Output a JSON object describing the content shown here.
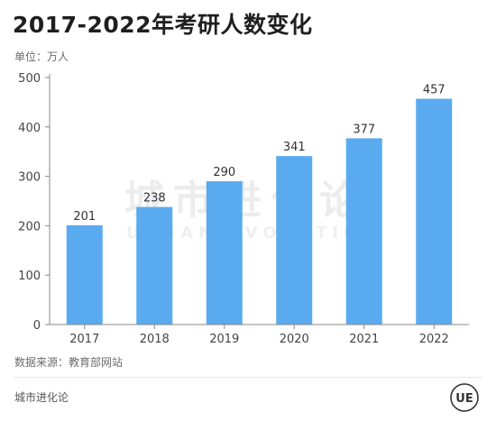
{
  "title": "2017-2022年考研人数变化",
  "unit_label": "单位：万人",
  "source_label": "数据来源：教育部网站",
  "brand_name": "城市进化论",
  "watermark": {
    "cn": "城市进化论",
    "en": "URBAN EVOLUTION"
  },
  "logo_text": "UE",
  "colors": {
    "bar": "#5aaaf0",
    "axis": "#888888",
    "grid": "#d9d9d9"
  },
  "chart_data": {
    "type": "bar",
    "categories": [
      "2017",
      "2018",
      "2019",
      "2020",
      "2021",
      "2022"
    ],
    "values": [
      201,
      238,
      290,
      341,
      377,
      457
    ],
    "ylim": [
      0,
      500
    ],
    "yticks": [
      0,
      100,
      200,
      300,
      400,
      500
    ],
    "data_labels": true,
    "grid": false
  }
}
